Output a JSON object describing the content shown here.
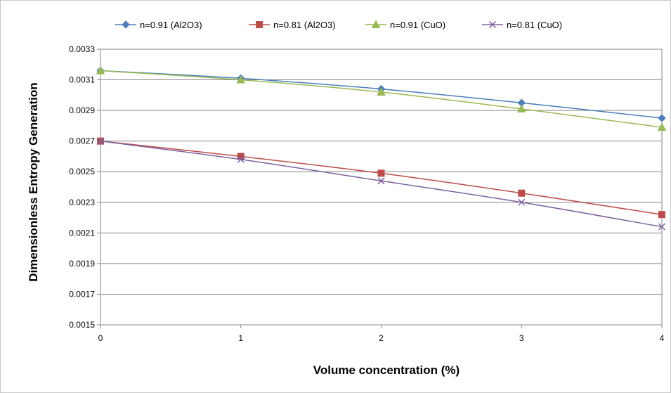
{
  "chart_data": {
    "type": "line",
    "title": "",
    "xlabel": "Volume concentration (%)",
    "ylabel": "Dimensionless Entropy Generation",
    "x": [
      0,
      1,
      2,
      3,
      4
    ],
    "xlim": [
      0,
      4
    ],
    "ylim": [
      0.0015,
      0.0033
    ],
    "x_ticks": [
      "0",
      "1",
      "2",
      "3",
      "4"
    ],
    "y_ticks": [
      "0.0015",
      "0.0017",
      "0.0019",
      "0.0021",
      "0.0023",
      "0.0025",
      "0.0027",
      "0.0029",
      "0.0031",
      "0.0033"
    ],
    "grid": "horizontal",
    "legend_position": "top",
    "series": [
      {
        "name": "n=0.91 (Al2O3)",
        "values": [
          0.00316,
          0.00311,
          0.00304,
          0.00295,
          0.00285
        ],
        "color": "#4a7ebb",
        "marker": "diamond"
      },
      {
        "name": "n=0.81 (Al2O3)",
        "values": [
          0.0027,
          0.0026,
          0.00249,
          0.00236,
          0.00222
        ],
        "color": "#be4b48",
        "marker": "square"
      },
      {
        "name": "n=0.91 (CuO)",
        "values": [
          0.00316,
          0.0031,
          0.00302,
          0.00291,
          0.00279
        ],
        "color": "#98b954",
        "marker": "triangle"
      },
      {
        "name": "n=0.81 (CuO)",
        "values": [
          0.0027,
          0.00258,
          0.00244,
          0.0023,
          0.00214
        ],
        "color": "#7d60a0",
        "marker": "x"
      }
    ]
  }
}
